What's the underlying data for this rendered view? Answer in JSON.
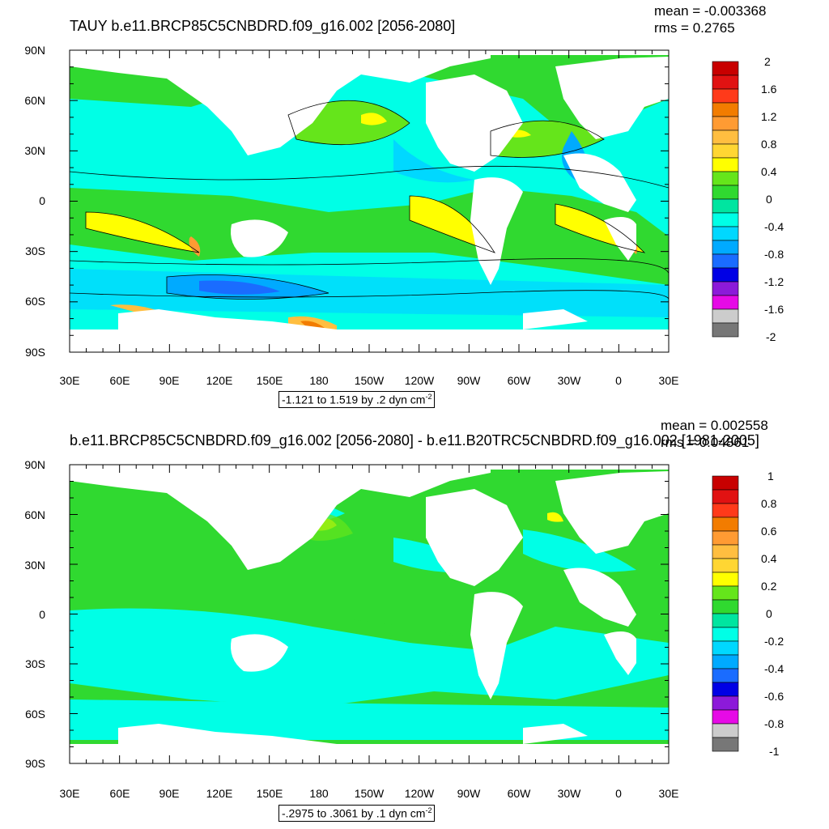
{
  "panels": [
    {
      "title": "TAUY b.e11.BRCP85C5CNBDRD.f09_g16.002 [2056-2080]",
      "mean_text": "mean = -0.003368",
      "rms_text": "rms = 0.2765",
      "range_text": "-1.121 to 1.519 by .2 dyn cm",
      "range_unit_exp": "-2",
      "colorbar_labels": [
        "2",
        "1.6",
        "1.2",
        "0.8",
        "0.4",
        "0",
        "-0.4",
        "-0.8",
        "-1.2",
        "-1.6",
        "-2"
      ],
      "colorbar_colors": [
        "#c80000",
        "#e11212",
        "#ff3a1a",
        "#f27c00",
        "#ff9b33",
        "#ffbe40",
        "#ffd633",
        "#ffff00",
        "#65e51b",
        "#30d930",
        "#00e5a0",
        "#00ffe6",
        "#00d8ff",
        "#00aaff",
        "#1a6cff",
        "#0000e5",
        "#8c1ad9",
        "#e60ae6",
        "#cccccc",
        "#777777"
      ]
    },
    {
      "title": "b.e11.BRCP85C5CNBDRD.f09_g16.002 [2056-2080] - b.e11.B20TRC5CNBDRD.f09_g16.002 [1981-2005]",
      "mean_text": "mean = 0.002558",
      "rms_text": "rms = 0.04861",
      "range_text": "-.2975 to .3061 by .1 dyn cm",
      "range_unit_exp": "-2",
      "colorbar_labels": [
        "1",
        "0.8",
        "0.6",
        "0.4",
        "0.2",
        "0",
        "-0.2",
        "-0.4",
        "-0.6",
        "-0.8",
        "-1"
      ],
      "colorbar_colors": [
        "#c80000",
        "#e11212",
        "#ff3a1a",
        "#f27c00",
        "#ff9b33",
        "#ffbe40",
        "#ffd633",
        "#ffff00",
        "#65e51b",
        "#30d930",
        "#00e5a0",
        "#00ffe6",
        "#00d8ff",
        "#00aaff",
        "#1a6cff",
        "#0000e5",
        "#8c1ad9",
        "#e60ae6",
        "#cccccc",
        "#777777"
      ]
    }
  ],
  "lat_labels": [
    "90N",
    "60N",
    "30N",
    "0",
    "30S",
    "60S",
    "90S"
  ],
  "lon_labels": [
    "30E",
    "60E",
    "90E",
    "120E",
    "150E",
    "180",
    "150W",
    "120W",
    "90W",
    "60W",
    "30W",
    "0",
    "30E"
  ],
  "colors": {
    "land": "#ffffff",
    "ocean_base": "#00e5a0",
    "frame": "#000000"
  }
}
